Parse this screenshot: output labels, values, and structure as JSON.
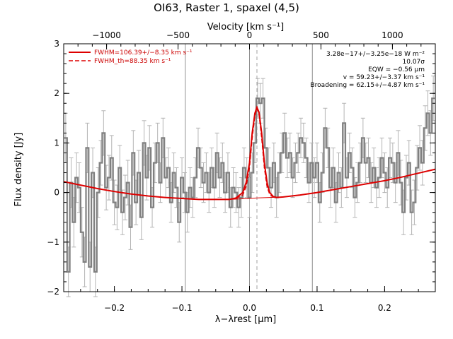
{
  "title": "OI63, Raster 1, spaxel (4,5)",
  "colors": {
    "data": "#808080",
    "error": "#b4b4b4",
    "fit": "#dd0000",
    "frame": "#000000",
    "vline": "#909090"
  },
  "chart_data": {
    "type": "line",
    "xlabel": "λ−λrest [μm]",
    "x2label": "Velocity [km s⁻¹]",
    "ylabel": "Flux density [Jy]",
    "xlim": [
      -0.275,
      0.275
    ],
    "ylim": [
      -2.0,
      3.0
    ],
    "x2lim": [
      -1300,
      1300
    ],
    "xticks": [
      -0.2,
      -0.1,
      0.0,
      0.1,
      0.2
    ],
    "xtick_labels": [
      "−0.2",
      "−0.1",
      "0.0",
      "0.1",
      "0.2"
    ],
    "x2ticks": [
      -1000,
      -500,
      0,
      500,
      1000
    ],
    "x2tick_labels": [
      "−1000",
      "−500",
      "0",
      "500",
      "1000"
    ],
    "yticks": [
      -2,
      -1,
      0,
      1,
      2,
      3
    ],
    "ytick_labels": [
      "−2",
      "−1",
      "0",
      "1",
      "2",
      "3"
    ],
    "vertical_lines": [
      {
        "x": -0.095,
        "style": "solid"
      },
      {
        "x": 0.0,
        "style": "solid"
      },
      {
        "x": 0.093,
        "style": "solid"
      },
      {
        "x": 0.011,
        "style": "dashed"
      }
    ],
    "legend": {
      "placement": "top-left",
      "entries": [
        {
          "label": "FWHM=106.39+/−8.35 km s⁻¹",
          "style": "solid"
        },
        {
          "label": "FWHM_th=88.35 km s⁻¹",
          "style": "dashed"
        }
      ]
    },
    "fit_lines": [
      "3.28e−17+/−3.25e−18 W m⁻²",
      "10.07σ",
      "EQW = −0.56 μm",
      "v = 59.23+/−3.37 km s⁻¹",
      "Broadening = 62.15+/−4.87 km s⁻¹"
    ],
    "series": [
      {
        "name": "data",
        "style": "step",
        "x": [
          -0.272,
          -0.268,
          -0.264,
          -0.26,
          -0.256,
          -0.252,
          -0.248,
          -0.244,
          -0.24,
          -0.236,
          -0.232,
          -0.228,
          -0.224,
          -0.22,
          -0.216,
          -0.212,
          -0.208,
          -0.204,
          -0.2,
          -0.196,
          -0.192,
          -0.188,
          -0.184,
          -0.18,
          -0.176,
          -0.172,
          -0.168,
          -0.164,
          -0.16,
          -0.156,
          -0.152,
          -0.148,
          -0.144,
          -0.14,
          -0.136,
          -0.132,
          -0.128,
          -0.124,
          -0.12,
          -0.116,
          -0.112,
          -0.108,
          -0.104,
          -0.1,
          -0.096,
          -0.092,
          -0.088,
          -0.084,
          -0.08,
          -0.076,
          -0.072,
          -0.068,
          -0.064,
          -0.06,
          -0.056,
          -0.052,
          -0.048,
          -0.044,
          -0.04,
          -0.036,
          -0.032,
          -0.028,
          -0.024,
          -0.02,
          -0.016,
          -0.012,
          -0.008,
          -0.004,
          0.0,
          0.004,
          0.008,
          0.012,
          0.016,
          0.02,
          0.024,
          0.028,
          0.032,
          0.036,
          0.04,
          0.044,
          0.048,
          0.052,
          0.056,
          0.06,
          0.064,
          0.068,
          0.072,
          0.076,
          0.08,
          0.084,
          0.088,
          0.092,
          0.096,
          0.1,
          0.104,
          0.108,
          0.112,
          0.116,
          0.12,
          0.124,
          0.128,
          0.132,
          0.136,
          0.14,
          0.144,
          0.148,
          0.152,
          0.156,
          0.16,
          0.164,
          0.168,
          0.172,
          0.176,
          0.18,
          0.184,
          0.188,
          0.192,
          0.196,
          0.2,
          0.204,
          0.208,
          0.212,
          0.216,
          0.22,
          0.224,
          0.228,
          0.232,
          0.236,
          0.24,
          0.244,
          0.248,
          0.252,
          0.256,
          0.26,
          0.264,
          0.268,
          0.272
        ],
        "y": [
          1.1,
          -1.6,
          0.2,
          -0.6,
          0.3,
          0.1,
          -0.8,
          -1.4,
          0.9,
          -1.5,
          0.4,
          -1.6,
          0.0,
          0.6,
          1.2,
          0.1,
          0.3,
          0.7,
          -0.2,
          -0.3,
          0.5,
          -0.4,
          -0.1,
          0.2,
          -0.7,
          0.8,
          -0.2,
          0.4,
          -0.5,
          1.0,
          0.3,
          0.9,
          -0.3,
          0.6,
          1.0,
          0.2,
          1.1,
          0.3,
          0.5,
          -0.2,
          0.4,
          0.1,
          -0.6,
          0.3,
          0.0,
          -0.4,
          0.1,
          -0.1,
          0.3,
          0.9,
          0.5,
          0.2,
          0.4,
          0.0,
          0.5,
          0.1,
          0.8,
          0.3,
          0.6,
          0.0,
          0.4,
          -0.3,
          0.1,
          0.0,
          -0.3,
          -0.1,
          0.5,
          0.3,
          -0.1,
          0.4,
          1.0,
          1.9,
          1.8,
          1.9,
          0.9,
          0.5,
          0.1,
          0.6,
          -0.1,
          0.4,
          0.8,
          1.2,
          0.7,
          0.8,
          0.3,
          0.6,
          0.8,
          1.1,
          1.0,
          0.7,
          0.2,
          0.6,
          0.3,
          0.6,
          -0.2,
          0.4,
          1.3,
          0.9,
          0.1,
          0.5,
          -0.2,
          0.4,
          0.1,
          1.4,
          0.3,
          0.8,
          0.5,
          -0.1,
          0.2,
          0.6,
          1.1,
          0.6,
          0.7,
          0.2,
          0.5,
          0.1,
          0.3,
          0.7,
          0.4,
          0.1,
          0.7,
          0.6,
          0.2,
          0.8,
          0.2,
          -0.4,
          0.3,
          0.6,
          -0.4,
          -0.2,
          0.5,
          0.9,
          0.6,
          1.3,
          1.6,
          1.2,
          1.9
        ],
        "err": [
          0.5,
          0.5,
          0.5,
          0.5,
          0.5,
          0.5,
          0.5,
          0.5,
          0.5,
          0.5,
          0.5,
          0.5,
          0.5,
          0.45,
          0.45,
          0.45,
          0.45,
          0.45,
          0.45,
          0.45,
          0.45,
          0.45,
          0.45,
          0.45,
          0.45,
          0.45,
          0.45,
          0.45,
          0.45,
          0.45,
          0.45,
          0.45,
          0.4,
          0.4,
          0.4,
          0.4,
          0.4,
          0.4,
          0.4,
          0.4,
          0.4,
          0.4,
          0.4,
          0.4,
          0.4,
          0.4,
          0.4,
          0.4,
          0.4,
          0.4,
          0.4,
          0.4,
          0.4,
          0.4,
          0.4,
          0.4,
          0.4,
          0.4,
          0.4,
          0.4,
          0.4,
          0.4,
          0.4,
          0.4,
          0.4,
          0.4,
          0.4,
          0.4,
          0.4,
          0.4,
          0.4,
          0.4,
          0.4,
          0.4,
          0.4,
          0.4,
          0.4,
          0.4,
          0.4,
          0.4,
          0.4,
          0.4,
          0.4,
          0.4,
          0.4,
          0.4,
          0.4,
          0.4,
          0.4,
          0.4,
          0.4,
          0.4,
          0.4,
          0.4,
          0.4,
          0.4,
          0.4,
          0.4,
          0.4,
          0.4,
          0.4,
          0.4,
          0.4,
          0.4,
          0.4,
          0.4,
          0.4,
          0.4,
          0.4,
          0.4,
          0.4,
          0.4,
          0.4,
          0.4,
          0.4,
          0.4,
          0.4,
          0.4,
          0.4,
          0.4,
          0.4,
          0.4,
          0.4,
          0.45,
          0.45,
          0.45,
          0.45,
          0.45,
          0.45,
          0.45,
          0.45,
          0.45,
          0.45,
          0.45,
          0.45,
          0.45,
          0.45
        ]
      },
      {
        "name": "FWHM=106.39+/−8.35 km s⁻¹",
        "style": "solid",
        "x": [
          -0.275,
          -0.25,
          -0.225,
          -0.2,
          -0.175,
          -0.15,
          -0.125,
          -0.1,
          -0.075,
          -0.05,
          -0.03,
          -0.02,
          -0.01,
          -0.005,
          0.0,
          0.004,
          0.008,
          0.011,
          0.014,
          0.018,
          0.022,
          0.026,
          0.03,
          0.035,
          0.04,
          0.05,
          0.075,
          0.1,
          0.125,
          0.15,
          0.175,
          0.2,
          0.225,
          0.25,
          0.275
        ],
        "y": [
          0.22,
          0.15,
          0.08,
          0.02,
          -0.03,
          -0.07,
          -0.1,
          -0.12,
          -0.14,
          -0.14,
          -0.14,
          -0.11,
          0.0,
          0.2,
          0.6,
          1.2,
          1.6,
          1.72,
          1.62,
          1.2,
          0.6,
          0.2,
          0.0,
          -0.08,
          -0.1,
          -0.09,
          -0.05,
          0.0,
          0.06,
          0.12,
          0.18,
          0.24,
          0.31,
          0.39,
          0.47
        ]
      },
      {
        "name": "FWHM_th=88.35 km s⁻¹",
        "style": "dashed",
        "x": [
          -0.02,
          -0.01,
          -0.005,
          0.0,
          0.004,
          0.008,
          0.011,
          0.014,
          0.018,
          0.022,
          0.026,
          0.03,
          0.035,
          0.04
        ],
        "y": [
          -0.12,
          -0.05,
          0.12,
          0.5,
          1.1,
          1.55,
          1.7,
          1.58,
          1.1,
          0.5,
          0.12,
          -0.04,
          -0.09,
          -0.1
        ]
      },
      {
        "name": "baseline",
        "style": "thin",
        "x": [
          -0.03,
          0.0,
          0.011,
          0.03,
          0.05
        ],
        "y": [
          -0.14,
          -0.12,
          -0.11,
          -0.1,
          -0.09
        ]
      }
    ]
  }
}
